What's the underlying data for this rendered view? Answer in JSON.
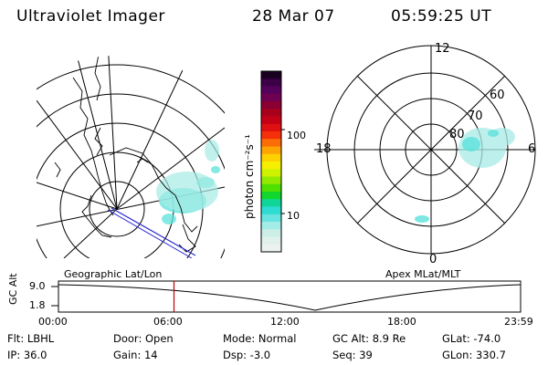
{
  "header": {
    "instrument": "Ultraviolet Imager",
    "date": "28 Mar 07",
    "time": "05:59:25 UT"
  },
  "colorbar": {
    "unit_label": "photon cm⁻²s⁻¹",
    "ticks": [
      "100",
      "10"
    ],
    "colors": [
      "#1a0020",
      "#3b0046",
      "#55005a",
      "#6e0052",
      "#8a0033",
      "#a8001c",
      "#c40016",
      "#e01010",
      "#f5300a",
      "#fb6d06",
      "#fda404",
      "#fdd000",
      "#f6f000",
      "#cff200",
      "#93ea00",
      "#4fe000",
      "#10d62e",
      "#10d69a",
      "#2fdcd2",
      "#67e4e0",
      "#a3ece8",
      "#cbefe6",
      "#e0f0ea",
      "#ecf2ee"
    ]
  },
  "left_map": {
    "label": "Geographic Lat/Lon"
  },
  "right_map": {
    "label": "Apex MLat/MLT",
    "mlt_labels": {
      "top": "12",
      "bottom": "0",
      "left": "18",
      "right": "6"
    },
    "lat_labels": [
      "60",
      "70",
      "80"
    ]
  },
  "altitude_plot": {
    "y_label": "GC Alt",
    "y_ticks": [
      "9.0",
      "1.8"
    ],
    "x_ticks": [
      "00:00",
      "06:00",
      "12:00",
      "18:00",
      "23:59"
    ],
    "marker_time_hours": 6.0,
    "marker_color": "#c00000"
  },
  "info": {
    "filter": "Flt: LBHL",
    "ip": "IP: 36.0",
    "door": "Door: Open",
    "gain": "Gain: 14",
    "mode": "Mode: Normal",
    "dsp": "Dsp:    -3.0",
    "gc_alt": "GC Alt: 8.9 Re",
    "seq": "Seq: 39",
    "glat": "GLat: -74.0",
    "glon": "GLon: 330.7"
  }
}
